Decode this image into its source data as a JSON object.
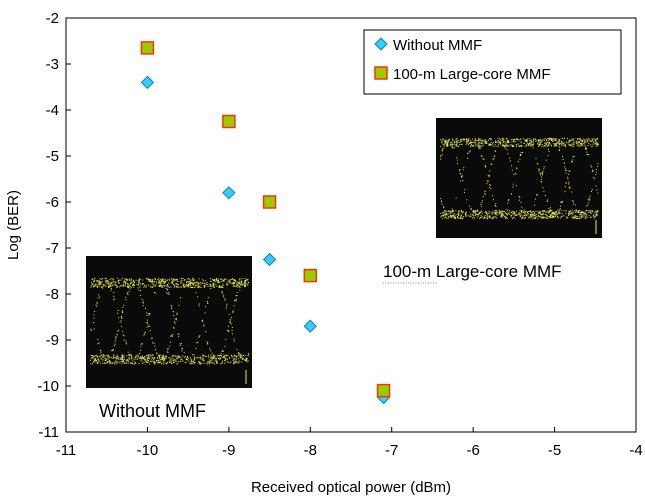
{
  "chart_data": {
    "type": "scatter",
    "title": "",
    "xlabel": "Received optical power (dBm)",
    "ylabel": "Log (BER)",
    "xlim": [
      -11,
      -4
    ],
    "ylim": [
      -11,
      -2
    ],
    "xticks": [
      -11,
      -10,
      -9,
      -8,
      -7,
      -6,
      -5,
      -4
    ],
    "yticks": [
      -2,
      -3,
      -4,
      -5,
      -6,
      -7,
      -8,
      -9,
      -10,
      -11
    ],
    "grid": false,
    "legend_position": "top-right",
    "series": [
      {
        "name": "Without MMF",
        "marker": "diamond",
        "color": "#33ccff",
        "x": [
          -10,
          -9,
          -8.5,
          -8,
          -7.1
        ],
        "y": [
          -3.4,
          -5.8,
          -7.25,
          -8.7,
          -10.25
        ]
      },
      {
        "name": "100-m Large-core MMF",
        "marker": "square",
        "color": "#99cc00",
        "edge_color": "#ff3300",
        "x": [
          -10,
          -9,
          -8.5,
          -8,
          -7.1
        ],
        "y": [
          -2.65,
          -4.25,
          -6.0,
          -7.6,
          -10.1
        ]
      }
    ],
    "annotations": [
      {
        "text": "100-m Large-core MMF",
        "kind": "eye-diagram inset caption"
      },
      {
        "text": "Without MMF",
        "kind": "eye-diagram inset caption"
      }
    ]
  }
}
